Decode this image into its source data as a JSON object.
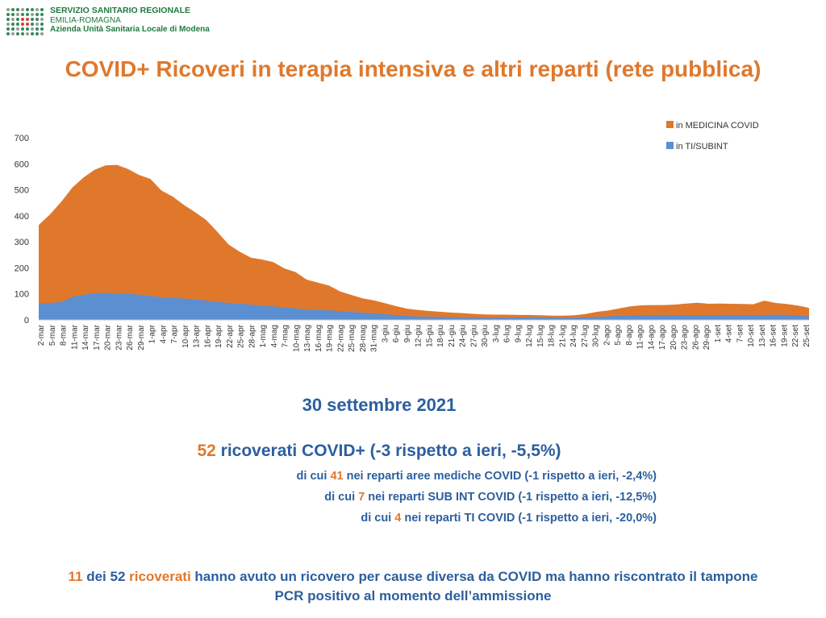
{
  "logo": {
    "line1": "SERVIZIO SANITARIO REGIONALE",
    "line2": "EMILIA-ROMAGNA",
    "line3": "Azienda Unità Sanitaria Locale di Modena",
    "colors": [
      "#2e8b57",
      "#d93a3a",
      "#9a9a9a"
    ]
  },
  "title": "COVID+ Ricoveri in terapia intensiva e altri reparti (rete pubblica)",
  "colors": {
    "orange": "#e0782c",
    "blue": "#5b8fd1",
    "text_blue": "#2c5f9e"
  },
  "chart_data": {
    "type": "area",
    "stacked": true,
    "y_ticks": [
      0,
      100,
      200,
      300,
      400,
      500,
      600,
      700
    ],
    "ylim": [
      0,
      700
    ],
    "grid": false,
    "legend_position": "top-right",
    "x_tick_labels": [
      "2-mar",
      "5-mar",
      "8-mar",
      "11-mar",
      "14-mar",
      "17-mar",
      "20-mar",
      "23-mar",
      "26-mar",
      "29-mar",
      "1-apr",
      "4-apr",
      "7-apr",
      "10-apr",
      "13-apr",
      "16-apr",
      "19-apr",
      "22-apr",
      "25-apr",
      "28-apr",
      "1-mag",
      "4-mag",
      "7-mag",
      "10-mag",
      "13-mag",
      "16-mag",
      "19-mag",
      "22-mag",
      "25-mag",
      "28-mag",
      "31-mag",
      "3-giu",
      "6-giu",
      "9-giu",
      "12-giu",
      "15-giu",
      "18-giu",
      "21-giu",
      "24-giu",
      "27-giu",
      "30-giu",
      "3-lug",
      "6-lug",
      "9-lug",
      "12-lug",
      "15-lug",
      "18-lug",
      "21-lug",
      "24-lug",
      "27-lug",
      "30-lug",
      "2-ago",
      "5-ago",
      "8-ago",
      "11-ago",
      "14-ago",
      "17-ago",
      "20-ago",
      "23-ago",
      "26-ago",
      "29-ago",
      "1-set",
      "4-set",
      "7-set",
      "10-set",
      "13-set",
      "16-set",
      "19-set",
      "22-set",
      "25-set"
    ],
    "series": [
      {
        "name": "in TI/SUBINT",
        "color": "#5b8fd1",
        "values": [
          62,
          65,
          68,
          88,
          97,
          102,
          104,
          101,
          100,
          97,
          92,
          87,
          84,
          82,
          79,
          74,
          69,
          65,
          62,
          59,
          55,
          52,
          48,
          44,
          40,
          38,
          37,
          34,
          31,
          28,
          25,
          22,
          18,
          15,
          13,
          12,
          11,
          10,
          9,
          8,
          8,
          8,
          9,
          9,
          10,
          10,
          9,
          8,
          9,
          10,
          12,
          14,
          16,
          17,
          18,
          19,
          19,
          19,
          18,
          18,
          18,
          19,
          19,
          19,
          19,
          19,
          20,
          19,
          17,
          13
        ]
      },
      {
        "name": "in MEDICINA COVID",
        "color": "#e0782c",
        "values": [
          303,
          340,
          385,
          420,
          450,
          475,
          490,
          495,
          480,
          460,
          450,
          410,
          390,
          360,
          335,
          310,
          270,
          225,
          200,
          180,
          177,
          170,
          150,
          140,
          115,
          105,
          95,
          75,
          65,
          55,
          50,
          42,
          35,
          28,
          25,
          22,
          20,
          18,
          17,
          15,
          13,
          12,
          11,
          10,
          9,
          8,
          7,
          8,
          9,
          13,
          19,
          22,
          28,
          35,
          38,
          38,
          38,
          40,
          45,
          48,
          44,
          44,
          43,
          42,
          41,
          55,
          45,
          42,
          38,
          33
        ]
      }
    ]
  },
  "date_text": "30 settembre 2021",
  "headline": {
    "number": "52",
    "text": " ricoverati COVID+ (-3 rispetto a ieri, -5,5%)"
  },
  "details": [
    {
      "pre": "di cui ",
      "num": "41",
      "post": " nei reparti aree mediche COVID (-1 rispetto a ieri, -2,4%)"
    },
    {
      "pre": "di cui ",
      "num": "7",
      "post": " nei reparti SUB INT COVID (-1 rispetto a ieri, -12,5%)"
    },
    {
      "pre": "di cui ",
      "num": "4",
      "post": " nei reparti TI COVID (-1 rispetto a ieri, -20,0%)"
    }
  ],
  "footer": {
    "num1": "11",
    "t1": " dei 52 ",
    "orange_word": "ricoverati",
    "t2": " hanno avuto un ricovero per cause diversa da COVID ma hanno riscontrato il tampone",
    "line2": "PCR positivo al momento dell’ammissione"
  }
}
